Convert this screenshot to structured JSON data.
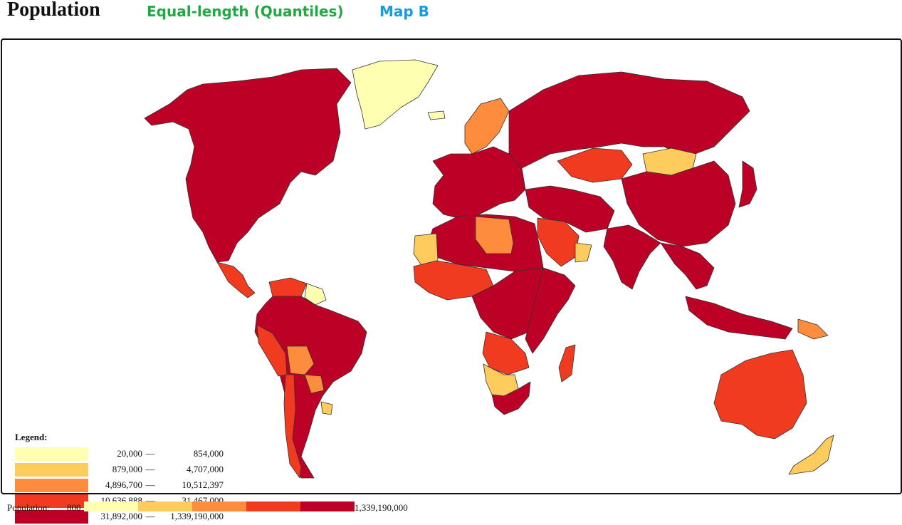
{
  "header": {
    "title": "Population",
    "tabs": [
      {
        "label": "Equal-length (Quantiles)",
        "color": "#22a844"
      },
      {
        "label": "Map B",
        "color": "#1a9bd8"
      }
    ]
  },
  "legend": {
    "title": "Legend:",
    "classes": [
      {
        "min": "20,000",
        "max": "854,000",
        "color": "#ffffb2"
      },
      {
        "min": "879,000",
        "max": "4,707,000",
        "color": "#fecc5c"
      },
      {
        "min": "4,896,700",
        "max": "10,512,397",
        "color": "#fd8d3c"
      },
      {
        "min": "10,636,888",
        "max": "31,467,000",
        "color": "#f03b20"
      },
      {
        "min": "31,892,000",
        "max": "1,339,190,000",
        "color": "#bd0026"
      }
    ],
    "dash": "—"
  },
  "bottom_bar": {
    "label": "Population:",
    "min": "800",
    "max": "1,339,190,000"
  },
  "map": {
    "regions": [
      {
        "name": "north-america",
        "class": 4
      },
      {
        "name": "greenland",
        "class": 0
      },
      {
        "name": "central-america",
        "class": 3
      },
      {
        "name": "venezuela",
        "class": 3
      },
      {
        "name": "guianas",
        "class": 0
      },
      {
        "name": "south-america",
        "class": 4
      },
      {
        "name": "peru",
        "class": 3
      },
      {
        "name": "bolivia",
        "class": 2
      },
      {
        "name": "paraguay",
        "class": 2
      },
      {
        "name": "chile",
        "class": 3
      },
      {
        "name": "uruguay",
        "class": 1
      },
      {
        "name": "iceland",
        "class": 0
      },
      {
        "name": "scandinavia",
        "class": 2
      },
      {
        "name": "europe",
        "class": 4
      },
      {
        "name": "russia",
        "class": 4
      },
      {
        "name": "kazakhstan",
        "class": 3
      },
      {
        "name": "mongolia",
        "class": 1
      },
      {
        "name": "china",
        "class": 4
      },
      {
        "name": "middle-east",
        "class": 4
      },
      {
        "name": "saudi-arabia",
        "class": 3
      },
      {
        "name": "oman",
        "class": 1
      },
      {
        "name": "india",
        "class": 4
      },
      {
        "name": "southeast-asia",
        "class": 4
      },
      {
        "name": "indonesia",
        "class": 4
      },
      {
        "name": "north-africa",
        "class": 4
      },
      {
        "name": "libya",
        "class": 2
      },
      {
        "name": "mauritania",
        "class": 1
      },
      {
        "name": "west-africa",
        "class": 3
      },
      {
        "name": "central-africa",
        "class": 4
      },
      {
        "name": "east-africa",
        "class": 4
      },
      {
        "name": "angola",
        "class": 3
      },
      {
        "name": "namibia-botswana",
        "class": 1
      },
      {
        "name": "south-africa",
        "class": 4
      },
      {
        "name": "madagascar",
        "class": 3
      },
      {
        "name": "japan",
        "class": 4
      },
      {
        "name": "papua-new-guinea",
        "class": 2
      },
      {
        "name": "australia",
        "class": 3
      },
      {
        "name": "new-zealand",
        "class": 1
      }
    ]
  }
}
